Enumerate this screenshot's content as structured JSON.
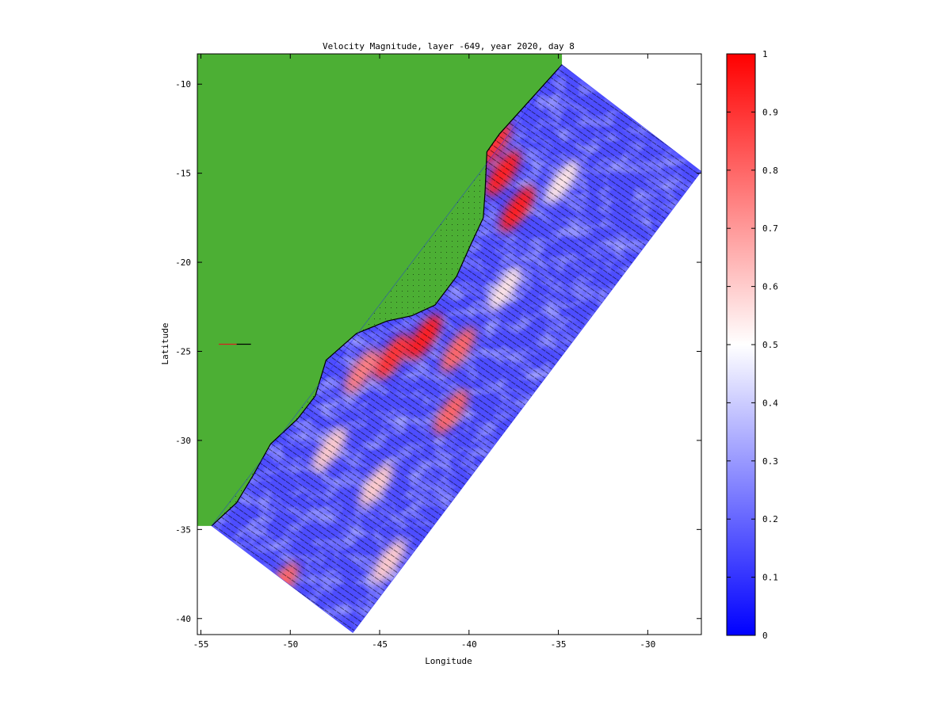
{
  "chart_data": [
    {
      "type": "heatmap",
      "title": "Velocity Magnitude, layer -649, year 2020, day 8",
      "xlabel": "Longitude",
      "ylabel": "Latitude",
      "xlim": [
        -55.2,
        -27
      ],
      "ylim": [
        -40.9,
        -8.3
      ],
      "xticks": [
        -55,
        -50,
        -45,
        -40,
        -35,
        -30
      ],
      "yticks": [
        -10,
        -15,
        -20,
        -25,
        -30,
        -35,
        -40
      ],
      "grid": false,
      "land_color": "#4caf34",
      "domain_corners_lonlat": [
        [
          -34.8,
          -8.9
        ],
        [
          -27,
          -14.9
        ],
        [
          -46.5,
          -40.8
        ],
        [
          -54.4,
          -34.8
        ]
      ],
      "coastline_lonlat": [
        [
          -34.8,
          -8.9
        ],
        [
          -36.5,
          -10.8
        ],
        [
          -38.3,
          -12.8
        ],
        [
          -39.0,
          -13.8
        ],
        [
          -39.1,
          -16.0
        ],
        [
          -39.2,
          -17.5
        ],
        [
          -39.9,
          -19.0
        ],
        [
          -40.7,
          -20.8
        ],
        [
          -41.9,
          -22.4
        ],
        [
          -43.2,
          -23.0
        ],
        [
          -44.6,
          -23.3
        ],
        [
          -46.3,
          -24.0
        ],
        [
          -48.0,
          -25.5
        ],
        [
          -48.6,
          -27.5
        ],
        [
          -49.6,
          -28.8
        ],
        [
          -51.1,
          -30.2
        ],
        [
          -52.1,
          -32.0
        ],
        [
          -53.0,
          -33.5
        ],
        [
          -54.4,
          -34.8
        ]
      ],
      "hotspots": [
        {
          "lon": -37.3,
          "lat": -17.0,
          "value": 0.95
        },
        {
          "lon": -38.1,
          "lat": -15.0,
          "value": 0.95
        },
        {
          "lon": -38.6,
          "lat": -13.4,
          "value": 0.9
        },
        {
          "lon": -42.5,
          "lat": -24.2,
          "value": 0.95
        },
        {
          "lon": -44.3,
          "lat": -25.3,
          "value": 0.9
        },
        {
          "lon": -40.6,
          "lat": -24.9,
          "value": 0.8
        },
        {
          "lon": -46.0,
          "lat": -26.1,
          "value": 0.75
        },
        {
          "lon": -41.0,
          "lat": -28.4,
          "value": 0.8
        },
        {
          "lon": -50.5,
          "lat": -38.1,
          "value": 0.8
        },
        {
          "lon": -47.8,
          "lat": -30.5,
          "value": 0.6
        },
        {
          "lon": -45.2,
          "lat": -32.5,
          "value": 0.6
        },
        {
          "lon": -44.5,
          "lat": -36.8,
          "value": 0.6
        },
        {
          "lon": -38.0,
          "lat": -21.5,
          "value": 0.55
        },
        {
          "lon": -34.8,
          "lat": -15.5,
          "value": 0.55
        }
      ],
      "flow_direction_deg": 215
    },
    {
      "type": "heatmap",
      "colorbar": true,
      "colormap": [
        "#0000ff",
        "#ffffff",
        "#ff0000"
      ],
      "ylim": [
        0,
        1
      ],
      "yticks": [
        0,
        0.1,
        0.2,
        0.3,
        0.4,
        0.5,
        0.6,
        0.7,
        0.8,
        0.9,
        1
      ],
      "yticklabels": [
        "0",
        "0.1",
        "0.2",
        "0.3",
        "0.4",
        "0.5",
        "0.6",
        "0.7",
        "0.8",
        "0.9",
        "1"
      ]
    }
  ]
}
